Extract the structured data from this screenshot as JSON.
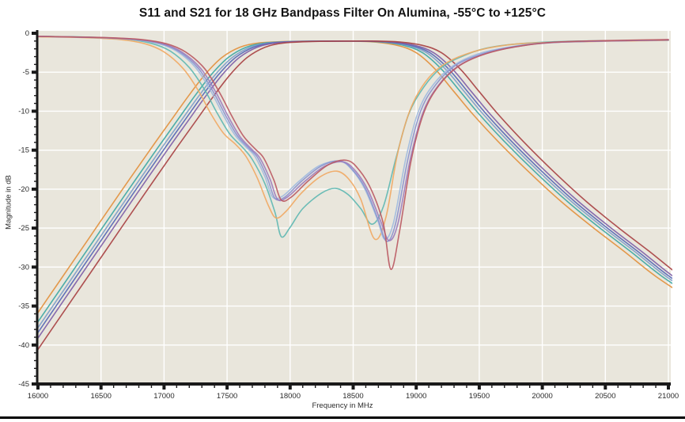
{
  "chart_data": {
    "type": "line",
    "title": "S11 and S21 for 18 GHz Bandpass Filter On Alumina, -55°C to +125°C",
    "xlabel": "Frequency in MHz",
    "ylabel": "Magnitude in dB",
    "xlim": [
      16000,
      21000
    ],
    "ylim": [
      -45,
      0
    ],
    "x_major_ticks": [
      16000,
      16500,
      17000,
      17500,
      18000,
      18500,
      19000,
      19500,
      20000,
      20500,
      21000
    ],
    "x_minor_step": 100,
    "y_major_ticks": [
      0,
      -5,
      -10,
      -15,
      -20,
      -25,
      -30,
      -35,
      -40,
      -45
    ],
    "y_minor_step": 1,
    "legend": "none",
    "grid": "white major gridlines on beige plot background",
    "plot_bg": "#E9E6DC",
    "grid_color": "#ffffff",
    "axis_color": "#1a1a1a",
    "tick_label_color": "#2b2b2b",
    "s21": {
      "description": "Bandpass transmission curves, one per temperature; near -1 dB in passband ~17600-19000 MHz, steep skirts",
      "base_points": [
        [
          15700,
          -45.3
        ],
        [
          16000,
          -38.2
        ],
        [
          16250,
          -32.3
        ],
        [
          16500,
          -26.4
        ],
        [
          16750,
          -20.5
        ],
        [
          17000,
          -14.7
        ],
        [
          17150,
          -11.3
        ],
        [
          17300,
          -7.9
        ],
        [
          17430,
          -5.2
        ],
        [
          17560,
          -3.1
        ],
        [
          17700,
          -1.8
        ],
        [
          17850,
          -1.25
        ],
        [
          18100,
          -1.05
        ],
        [
          18500,
          -1.0
        ],
        [
          18750,
          -1.1
        ],
        [
          18950,
          -1.55
        ],
        [
          19100,
          -2.5
        ],
        [
          19250,
          -4.6
        ],
        [
          19400,
          -7.5
        ],
        [
          19550,
          -10.4
        ],
        [
          19750,
          -13.9
        ],
        [
          20000,
          -17.9
        ],
        [
          20250,
          -21.6
        ],
        [
          20500,
          -24.9
        ],
        [
          20750,
          -28.0
        ],
        [
          21000,
          -31.2
        ],
        [
          21300,
          -34.4
        ]
      ],
      "series": [
        {
          "name": "S21-orange",
          "color": "#E2913E",
          "freq_shift_mhz": -100
        },
        {
          "name": "S21-teal",
          "color": "#3EA8A4",
          "freq_shift_mhz": -50
        },
        {
          "name": "S21-lightblue",
          "color": "#7D9EC9",
          "freq_shift_mhz": -18
        },
        {
          "name": "S21-blue",
          "color": "#5668B6",
          "freq_shift_mhz": 8
        },
        {
          "name": "S21-purple",
          "color": "#7E5FA8",
          "freq_shift_mhz": 38
        },
        {
          "name": "S21-red",
          "color": "#A84243",
          "freq_shift_mhz": 100
        }
      ]
    },
    "s11": {
      "description": "Return loss curves, one per temperature; near 0 dB out of band, double dip in passband near 17900 and 18700 MHz",
      "series": [
        {
          "name": "S11-teal",
          "color": "#5FB8B2",
          "points": [
            [
              16000,
              -0.4
            ],
            [
              16400,
              -0.5
            ],
            [
              16700,
              -0.75
            ],
            [
              16900,
              -1.3
            ],
            [
              17050,
              -2.3
            ],
            [
              17200,
              -4.4
            ],
            [
              17320,
              -7.2
            ],
            [
              17420,
              -10.2
            ],
            [
              17520,
              -12.9
            ],
            [
              17620,
              -14.6
            ],
            [
              17700,
              -16.2
            ],
            [
              17800,
              -19.3
            ],
            [
              17880,
              -23.0
            ],
            [
              17930,
              -26.1
            ],
            [
              18000,
              -24.9
            ],
            [
              18100,
              -22.5
            ],
            [
              18250,
              -20.5
            ],
            [
              18360,
              -19.9
            ],
            [
              18460,
              -20.7
            ],
            [
              18560,
              -22.5
            ],
            [
              18650,
              -24.5
            ],
            [
              18740,
              -22.2
            ],
            [
              18840,
              -16.0
            ],
            [
              18940,
              -10.4
            ],
            [
              19060,
              -6.9
            ],
            [
              19200,
              -4.4
            ],
            [
              19360,
              -3.0
            ],
            [
              19560,
              -1.9
            ],
            [
              19850,
              -1.3
            ],
            [
              20300,
              -1.0
            ],
            [
              21000,
              -0.9
            ]
          ]
        },
        {
          "name": "S11-orange",
          "color": "#F0A964",
          "points": [
            [
              16000,
              -0.45
            ],
            [
              16350,
              -0.55
            ],
            [
              16650,
              -0.8
            ],
            [
              16850,
              -1.35
            ],
            [
              17000,
              -2.4
            ],
            [
              17150,
              -4.5
            ],
            [
              17270,
              -7.3
            ],
            [
              17370,
              -10.3
            ],
            [
              17470,
              -12.8
            ],
            [
              17570,
              -14.3
            ],
            [
              17650,
              -15.8
            ],
            [
              17740,
              -18.6
            ],
            [
              17830,
              -22.2
            ],
            [
              17890,
              -23.7
            ],
            [
              17970,
              -22.8
            ],
            [
              18090,
              -20.5
            ],
            [
              18240,
              -18.4
            ],
            [
              18370,
              -17.7
            ],
            [
              18470,
              -18.8
            ],
            [
              18560,
              -21.3
            ],
            [
              18670,
              -26.4
            ],
            [
              18760,
              -23.6
            ],
            [
              18850,
              -15.6
            ],
            [
              18950,
              -9.9
            ],
            [
              19070,
              -6.3
            ],
            [
              19210,
              -4.1
            ],
            [
              19390,
              -2.7
            ],
            [
              19640,
              -1.7
            ],
            [
              20000,
              -1.2
            ],
            [
              21000,
              -0.9
            ]
          ]
        },
        {
          "name": "S11-lightblue",
          "color": "#9FBBDE",
          "points": [
            [
              16000,
              -0.4
            ],
            [
              16450,
              -0.55
            ],
            [
              16750,
              -0.8
            ],
            [
              16950,
              -1.3
            ],
            [
              17100,
              -2.3
            ],
            [
              17250,
              -4.4
            ],
            [
              17370,
              -7.4
            ],
            [
              17470,
              -10.5
            ],
            [
              17560,
              -13.0
            ],
            [
              17650,
              -14.6
            ],
            [
              17720,
              -15.8
            ],
            [
              17800,
              -18.4
            ],
            [
              17860,
              -21.0
            ],
            [
              17940,
              -20.9
            ],
            [
              18070,
              -19.0
            ],
            [
              18230,
              -17.0
            ],
            [
              18390,
              -16.4
            ],
            [
              18490,
              -17.5
            ],
            [
              18590,
              -19.9
            ],
            [
              18690,
              -23.8
            ],
            [
              18750,
              -26.4
            ],
            [
              18820,
              -24.3
            ],
            [
              18920,
              -15.9
            ],
            [
              19020,
              -9.9
            ],
            [
              19140,
              -6.5
            ],
            [
              19290,
              -4.2
            ],
            [
              19480,
              -2.7
            ],
            [
              19730,
              -1.8
            ],
            [
              20100,
              -1.15
            ],
            [
              21000,
              -0.85
            ]
          ]
        },
        {
          "name": "S11-periwinkle",
          "color": "#8A93CE",
          "points": [
            [
              16000,
              -0.4
            ],
            [
              16470,
              -0.55
            ],
            [
              16770,
              -0.8
            ],
            [
              16970,
              -1.3
            ],
            [
              17120,
              -2.35
            ],
            [
              17270,
              -4.45
            ],
            [
              17390,
              -7.5
            ],
            [
              17490,
              -10.6
            ],
            [
              17580,
              -13.1
            ],
            [
              17670,
              -14.7
            ],
            [
              17740,
              -15.9
            ],
            [
              17820,
              -18.6
            ],
            [
              17880,
              -21.2
            ],
            [
              17960,
              -21.0
            ],
            [
              18090,
              -19.0
            ],
            [
              18250,
              -17.0
            ],
            [
              18400,
              -16.4
            ],
            [
              18500,
              -17.6
            ],
            [
              18600,
              -20.0
            ],
            [
              18700,
              -24.0
            ],
            [
              18765,
              -26.7
            ],
            [
              18835,
              -24.5
            ],
            [
              18935,
              -16.1
            ],
            [
              19035,
              -10.0
            ],
            [
              19155,
              -6.6
            ],
            [
              19305,
              -4.2
            ],
            [
              19495,
              -2.8
            ],
            [
              19745,
              -1.8
            ],
            [
              20120,
              -1.15
            ],
            [
              21000,
              -0.85
            ]
          ]
        },
        {
          "name": "S11-purple",
          "color": "#9C7DBD",
          "points": [
            [
              16000,
              -0.4
            ],
            [
              16490,
              -0.55
            ],
            [
              16790,
              -0.8
            ],
            [
              16990,
              -1.35
            ],
            [
              17140,
              -2.4
            ],
            [
              17290,
              -4.5
            ],
            [
              17410,
              -7.55
            ],
            [
              17510,
              -10.7
            ],
            [
              17600,
              -13.2
            ],
            [
              17690,
              -14.8
            ],
            [
              17760,
              -16.0
            ],
            [
              17840,
              -18.7
            ],
            [
              17900,
              -21.3
            ],
            [
              17980,
              -21.0
            ],
            [
              18110,
              -19.1
            ],
            [
              18270,
              -17.1
            ],
            [
              18420,
              -16.5
            ],
            [
              18520,
              -17.7
            ],
            [
              18620,
              -20.2
            ],
            [
              18720,
              -24.2
            ],
            [
              18785,
              -26.6
            ],
            [
              18855,
              -24.4
            ],
            [
              18955,
              -16.0
            ],
            [
              19055,
              -10.1
            ],
            [
              19175,
              -6.7
            ],
            [
              19325,
              -4.3
            ],
            [
              19515,
              -2.8
            ],
            [
              19765,
              -1.8
            ],
            [
              20140,
              -1.15
            ],
            [
              21000,
              -0.85
            ]
          ]
        },
        {
          "name": "S11-pinkred",
          "color": "#BB5A63",
          "points": [
            [
              16000,
              -0.4
            ],
            [
              16520,
              -0.55
            ],
            [
              16820,
              -0.8
            ],
            [
              17020,
              -1.35
            ],
            [
              17170,
              -2.4
            ],
            [
              17320,
              -4.5
            ],
            [
              17440,
              -7.6
            ],
            [
              17540,
              -10.7
            ],
            [
              17630,
              -13.2
            ],
            [
              17720,
              -14.8
            ],
            [
              17790,
              -16.0
            ],
            [
              17870,
              -18.8
            ],
            [
              17930,
              -21.4
            ],
            [
              18010,
              -21.0
            ],
            [
              18140,
              -19.0
            ],
            [
              18300,
              -16.9
            ],
            [
              18450,
              -16.3
            ],
            [
              18550,
              -17.6
            ],
            [
              18650,
              -20.3
            ],
            [
              18740,
              -24.5
            ],
            [
              18800,
              -30.3
            ],
            [
              18870,
              -25.2
            ],
            [
              18960,
              -16.3
            ],
            [
              19060,
              -10.2
            ],
            [
              19180,
              -6.7
            ],
            [
              19330,
              -4.3
            ],
            [
              19520,
              -2.8
            ],
            [
              19770,
              -1.8
            ],
            [
              20150,
              -1.1
            ],
            [
              21000,
              -0.8
            ]
          ]
        }
      ]
    }
  }
}
